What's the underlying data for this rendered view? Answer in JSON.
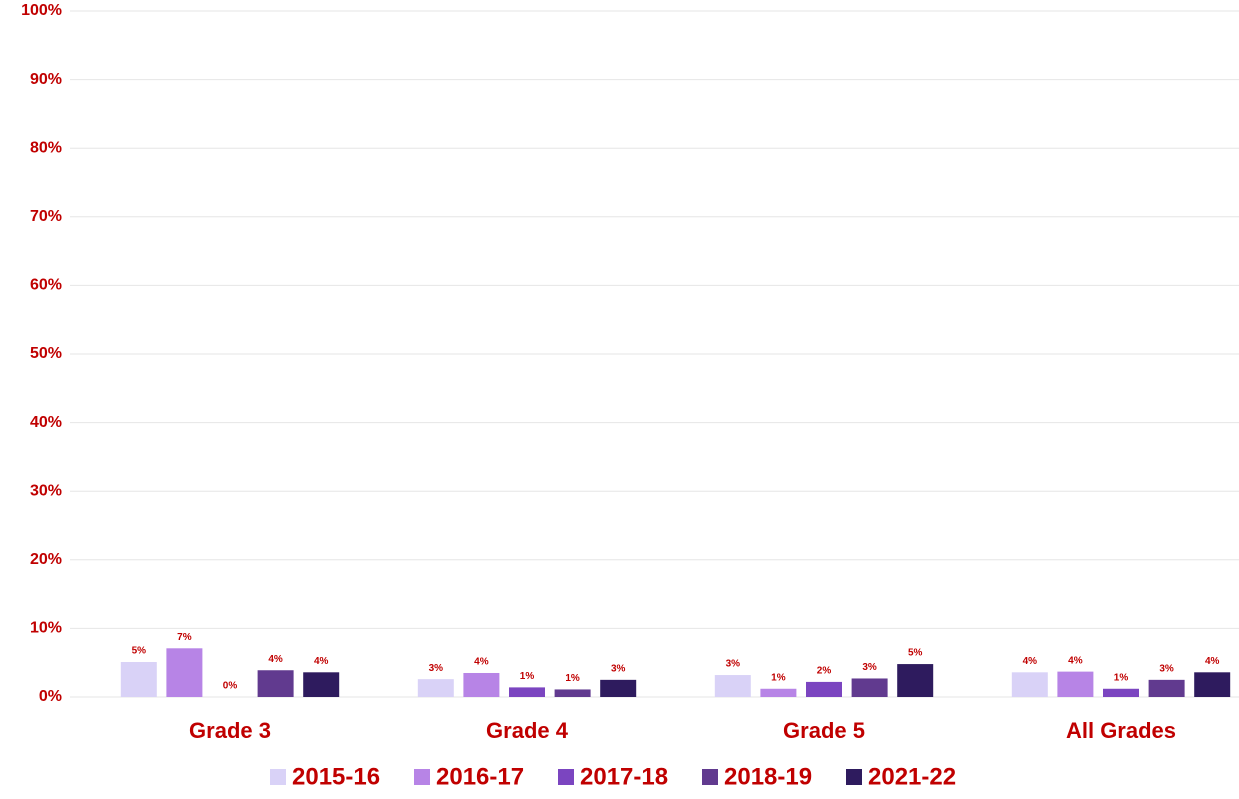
{
  "chart_data": {
    "type": "bar",
    "categories": [
      "Grade 3",
      "Grade 4",
      "Grade 5",
      "All Grades"
    ],
    "series": [
      {
        "name": "2015-16",
        "color": "#d9d2f7",
        "values": [
          5.1,
          2.6,
          3.2,
          3.6
        ],
        "value_labels": [
          "5%",
          "3%",
          "3%",
          "4%"
        ]
      },
      {
        "name": "2016-17",
        "color": "#b784e6",
        "values": [
          7.1,
          3.5,
          1.2,
          3.7
        ],
        "value_labels": [
          "7%",
          "4%",
          "1%",
          "4%"
        ]
      },
      {
        "name": "2017-18",
        "color": "#7b45c0",
        "values": [
          0,
          1.4,
          2.2,
          1.2
        ],
        "value_labels": [
          "0%",
          "1%",
          "2%",
          "1%"
        ]
      },
      {
        "name": "2018-19",
        "color": "#613a8f",
        "values": [
          3.9,
          1.1,
          2.7,
          2.5
        ],
        "value_labels": [
          "4%",
          "1%",
          "3%",
          "3%"
        ]
      },
      {
        "name": "2021-22",
        "color": "#2e1b5e",
        "values": [
          3.6,
          2.5,
          4.8,
          3.6
        ],
        "value_labels": [
          "4%",
          "3%",
          "5%",
          "4%"
        ]
      }
    ],
    "ylim": [
      0,
      100
    ],
    "yticks": [
      {
        "value": 0,
        "label": "0%"
      },
      {
        "value": 10,
        "label": "10%"
      },
      {
        "value": 20,
        "label": "20%"
      },
      {
        "value": 30,
        "label": "30%"
      },
      {
        "value": 40,
        "label": "40%"
      },
      {
        "value": 50,
        "label": "50%"
      },
      {
        "value": 60,
        "label": "60%"
      },
      {
        "value": 70,
        "label": "70%"
      },
      {
        "value": 80,
        "label": "80%"
      },
      {
        "value": 90,
        "label": "90%"
      },
      {
        "value": 100,
        "label": "100%"
      }
    ],
    "grid": true,
    "legend": "bottom"
  }
}
